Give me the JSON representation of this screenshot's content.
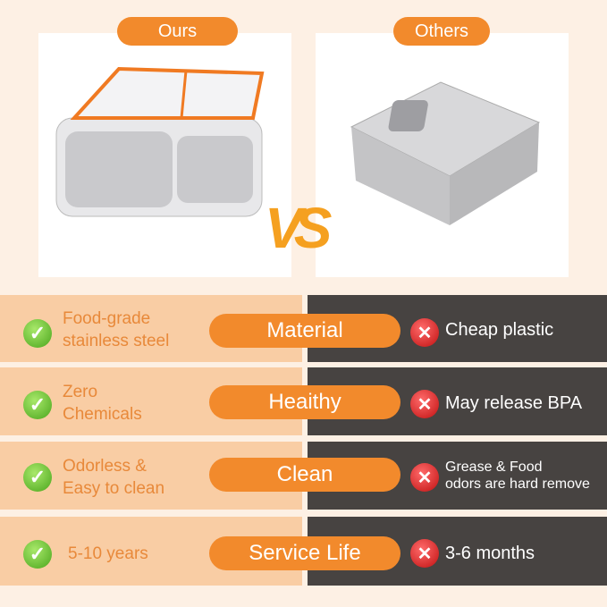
{
  "header": {
    "ours_label": "Ours",
    "others_label": "Others",
    "vs_label": "VS"
  },
  "colors": {
    "accent": "#f28a2c",
    "left_bg": "#f9cda4",
    "right_bg": "#474341",
    "page_bg": "#fdf0e4"
  },
  "rows": [
    {
      "category": "Material",
      "ours": [
        "Food-grade",
        "stainless steel"
      ],
      "others": [
        "Cheap plastic"
      ]
    },
    {
      "category": "Heaithy",
      "ours": [
        "Zero",
        "Chemicals"
      ],
      "others": [
        "May release BPA"
      ]
    },
    {
      "category": "Clean",
      "ours": [
        "Odorless &",
        "Easy to clean"
      ],
      "others": [
        "Grease & Food",
        "odors are hard remove"
      ]
    },
    {
      "category": "Service Life",
      "ours": [
        "5-10 years"
      ],
      "others": [
        "3-6 months"
      ]
    }
  ]
}
